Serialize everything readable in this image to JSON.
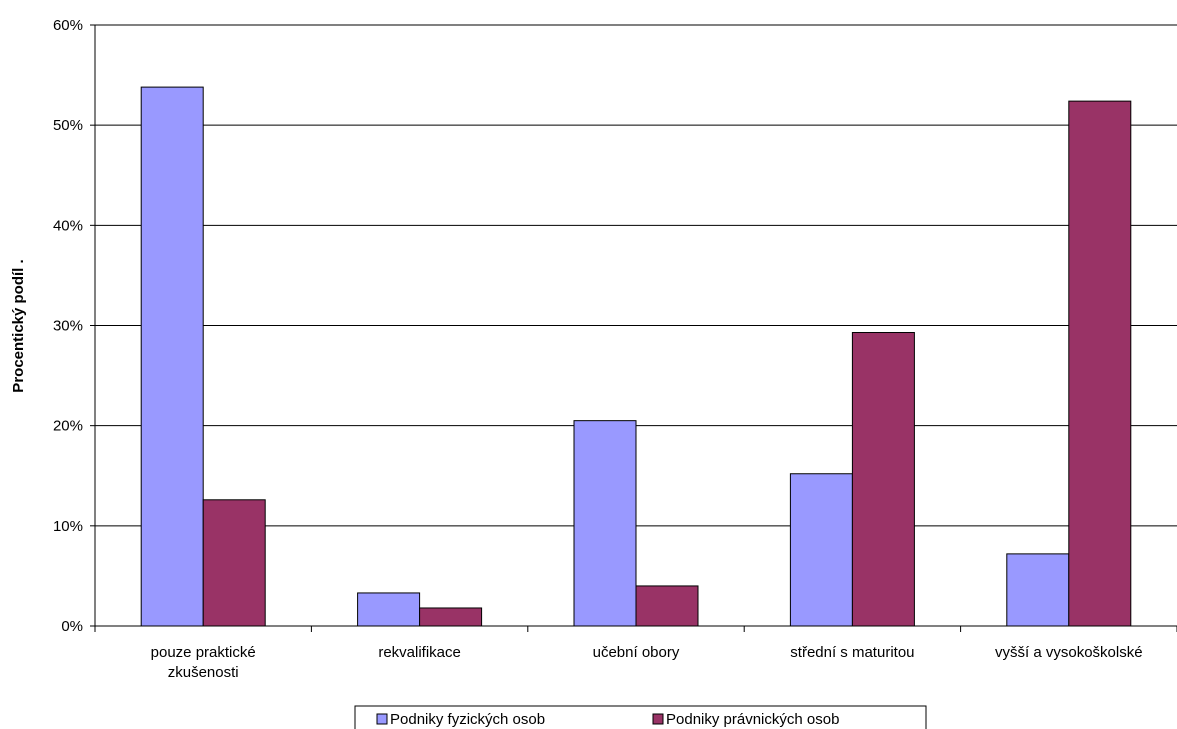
{
  "chart_data": {
    "type": "bar",
    "title": "",
    "xlabel": "",
    "ylabel": "Procentický podíl .",
    "ylim": [
      0,
      60
    ],
    "yticks": [
      0,
      10,
      20,
      30,
      40,
      50,
      60
    ],
    "ytick_labels": [
      "0%",
      "10%",
      "20%",
      "30%",
      "40%",
      "50%",
      "60%"
    ],
    "grid": "horizontal",
    "legend_position": "bottom",
    "categories": [
      [
        "pouze praktické",
        "zkušenosti"
      ],
      [
        "rekvalifikace"
      ],
      [
        "učební obory"
      ],
      [
        "střední s maturitou"
      ],
      [
        "vyšší a vysokoškolské"
      ]
    ],
    "series": [
      {
        "name": "Podniky fyzických osob",
        "color": "#9999ff",
        "values": [
          53.8,
          3.3,
          20.5,
          15.2,
          7.2
        ]
      },
      {
        "name": "Podniky právnických osob",
        "color": "#993366",
        "values": [
          12.6,
          1.8,
          4.0,
          29.3,
          52.4
        ]
      }
    ]
  }
}
